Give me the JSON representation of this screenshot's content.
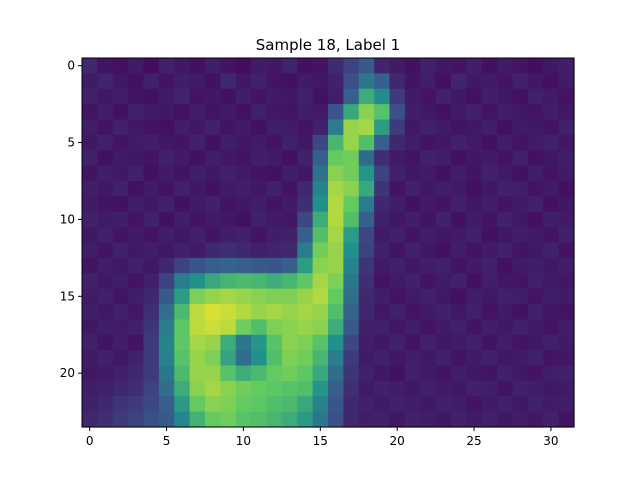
{
  "chart_data": {
    "type": "heatmap",
    "title": "Sample 18, Label 1",
    "xlabel": "",
    "ylabel": "",
    "colormap": "viridis",
    "value_range": [
      0,
      1
    ],
    "xlim": [
      -0.5,
      31.5
    ],
    "ylim": [
      23.5,
      -0.5
    ],
    "x_ticks": [
      0,
      5,
      10,
      15,
      20,
      25,
      30
    ],
    "y_ticks": [
      0,
      5,
      10,
      15,
      20
    ],
    "grid": false,
    "legend": "none",
    "rows": [
      [
        0.12,
        0.06,
        0.05,
        0.08,
        0.04,
        0.1,
        0.07,
        0.05,
        0.09,
        0.06,
        0.04,
        0.08,
        0.07,
        0.11,
        0.05,
        0.06,
        0.13,
        0.2,
        0.28,
        0.11,
        0.08,
        0.05,
        0.1,
        0.07,
        0.06,
        0.09,
        0.05,
        0.08,
        0.06,
        0.04,
        0.07,
        0.09
      ],
      [
        0.08,
        0.11,
        0.07,
        0.05,
        0.1,
        0.06,
        0.09,
        0.08,
        0.05,
        0.12,
        0.07,
        0.1,
        0.06,
        0.05,
        0.08,
        0.07,
        0.1,
        0.24,
        0.4,
        0.3,
        0.12,
        0.06,
        0.09,
        0.05,
        0.11,
        0.07,
        0.08,
        0.06,
        0.1,
        0.07,
        0.05,
        0.08
      ],
      [
        0.1,
        0.07,
        0.09,
        0.06,
        0.05,
        0.08,
        0.11,
        0.06,
        0.07,
        0.05,
        0.09,
        0.06,
        0.08,
        0.07,
        0.1,
        0.05,
        0.09,
        0.3,
        0.62,
        0.48,
        0.18,
        0.08,
        0.06,
        0.1,
        0.07,
        0.05,
        0.09,
        0.07,
        0.05,
        0.1,
        0.08,
        0.06
      ],
      [
        0.06,
        0.09,
        0.05,
        0.1,
        0.08,
        0.07,
        0.05,
        0.09,
        0.06,
        0.08,
        0.05,
        0.1,
        0.07,
        0.06,
        0.09,
        0.08,
        0.26,
        0.6,
        0.82,
        0.72,
        0.24,
        0.09,
        0.07,
        0.05,
        0.08,
        0.1,
        0.06,
        0.09,
        0.07,
        0.06,
        0.09,
        0.07
      ],
      [
        0.09,
        0.06,
        0.1,
        0.07,
        0.06,
        0.05,
        0.09,
        0.07,
        0.1,
        0.06,
        0.08,
        0.05,
        0.09,
        0.08,
        0.06,
        0.1,
        0.42,
        0.84,
        0.86,
        0.55,
        0.18,
        0.07,
        0.1,
        0.08,
        0.06,
        0.07,
        0.09,
        0.05,
        0.08,
        0.07,
        0.06,
        0.1
      ],
      [
        0.07,
        0.1,
        0.06,
        0.08,
        0.09,
        0.07,
        0.06,
        0.1,
        0.05,
        0.09,
        0.07,
        0.08,
        0.06,
        0.1,
        0.07,
        0.22,
        0.66,
        0.84,
        0.7,
        0.3,
        0.12,
        0.09,
        0.06,
        0.07,
        0.1,
        0.08,
        0.05,
        0.09,
        0.06,
        0.08,
        0.1,
        0.07
      ],
      [
        0.1,
        0.05,
        0.08,
        0.07,
        0.06,
        0.1,
        0.08,
        0.05,
        0.09,
        0.07,
        0.06,
        0.09,
        0.08,
        0.05,
        0.1,
        0.3,
        0.76,
        0.78,
        0.35,
        0.14,
        0.08,
        0.06,
        0.1,
        0.09,
        0.05,
        0.07,
        0.08,
        0.06,
        0.1,
        0.05,
        0.07,
        0.09
      ],
      [
        0.06,
        0.09,
        0.07,
        0.1,
        0.05,
        0.08,
        0.06,
        0.09,
        0.07,
        0.1,
        0.08,
        0.06,
        0.05,
        0.09,
        0.07,
        0.38,
        0.82,
        0.78,
        0.52,
        0.2,
        0.1,
        0.07,
        0.08,
        0.05,
        0.09,
        0.06,
        0.1,
        0.08,
        0.05,
        0.09,
        0.06,
        0.08
      ],
      [
        0.09,
        0.07,
        0.1,
        0.05,
        0.08,
        0.06,
        0.1,
        0.07,
        0.05,
        0.08,
        0.09,
        0.07,
        0.1,
        0.06,
        0.12,
        0.45,
        0.86,
        0.82,
        0.6,
        0.16,
        0.06,
        0.1,
        0.07,
        0.09,
        0.08,
        0.05,
        0.07,
        0.1,
        0.09,
        0.06,
        0.08,
        0.05
      ],
      [
        0.08,
        0.06,
        0.05,
        0.09,
        0.07,
        0.1,
        0.05,
        0.08,
        0.1,
        0.06,
        0.07,
        0.09,
        0.06,
        0.08,
        0.14,
        0.5,
        0.88,
        0.76,
        0.42,
        0.12,
        0.09,
        0.05,
        0.08,
        0.06,
        0.1,
        0.07,
        0.09,
        0.06,
        0.08,
        0.1,
        0.05,
        0.07
      ],
      [
        0.1,
        0.08,
        0.09,
        0.06,
        0.1,
        0.05,
        0.09,
        0.06,
        0.08,
        0.07,
        0.05,
        0.1,
        0.08,
        0.07,
        0.22,
        0.62,
        0.88,
        0.7,
        0.3,
        0.1,
        0.07,
        0.09,
        0.06,
        0.1,
        0.05,
        0.08,
        0.06,
        0.1,
        0.07,
        0.05,
        0.09,
        0.08
      ],
      [
        0.07,
        0.1,
        0.06,
        0.08,
        0.06,
        0.09,
        0.07,
        0.1,
        0.06,
        0.09,
        0.1,
        0.06,
        0.09,
        0.1,
        0.3,
        0.7,
        0.86,
        0.55,
        0.22,
        0.08,
        0.1,
        0.06,
        0.09,
        0.07,
        0.08,
        0.1,
        0.05,
        0.07,
        0.09,
        0.08,
        0.06,
        0.1
      ],
      [
        0.09,
        0.06,
        0.1,
        0.07,
        0.09,
        0.07,
        0.1,
        0.08,
        0.12,
        0.14,
        0.12,
        0.1,
        0.11,
        0.12,
        0.42,
        0.78,
        0.84,
        0.5,
        0.2,
        0.1,
        0.06,
        0.1,
        0.07,
        0.05,
        0.09,
        0.06,
        0.08,
        0.1,
        0.06,
        0.07,
        0.1,
        0.06
      ],
      [
        0.06,
        0.09,
        0.07,
        0.1,
        0.07,
        0.12,
        0.2,
        0.26,
        0.3,
        0.32,
        0.3,
        0.28,
        0.26,
        0.3,
        0.55,
        0.82,
        0.84,
        0.45,
        0.16,
        0.08,
        0.1,
        0.07,
        0.09,
        0.1,
        0.06,
        0.08,
        0.1,
        0.05,
        0.08,
        0.09,
        0.07,
        0.09
      ],
      [
        0.1,
        0.07,
        0.09,
        0.06,
        0.1,
        0.2,
        0.42,
        0.5,
        0.6,
        0.65,
        0.68,
        0.66,
        0.62,
        0.66,
        0.74,
        0.86,
        0.8,
        0.4,
        0.14,
        0.06,
        0.08,
        0.1,
        0.06,
        0.08,
        0.1,
        0.05,
        0.09,
        0.07,
        0.06,
        0.1,
        0.08,
        0.07
      ],
      [
        0.08,
        0.1,
        0.06,
        0.09,
        0.12,
        0.28,
        0.55,
        0.8,
        0.84,
        0.86,
        0.84,
        0.82,
        0.8,
        0.8,
        0.84,
        0.88,
        0.76,
        0.36,
        0.12,
        0.09,
        0.06,
        0.08,
        0.1,
        0.07,
        0.05,
        0.09,
        0.07,
        0.1,
        0.09,
        0.06,
        0.09,
        0.08
      ],
      [
        0.09,
        0.07,
        0.1,
        0.07,
        0.14,
        0.36,
        0.68,
        0.9,
        0.94,
        0.92,
        0.88,
        0.84,
        0.86,
        0.84,
        0.86,
        0.84,
        0.7,
        0.32,
        0.12,
        0.07,
        0.1,
        0.06,
        0.08,
        0.1,
        0.07,
        0.1,
        0.06,
        0.08,
        0.05,
        0.1,
        0.07,
        0.06
      ],
      [
        0.07,
        0.09,
        0.08,
        0.1,
        0.16,
        0.42,
        0.74,
        0.9,
        0.92,
        0.9,
        0.78,
        0.7,
        0.8,
        0.82,
        0.84,
        0.82,
        0.62,
        0.28,
        0.1,
        0.1,
        0.07,
        0.09,
        0.06,
        0.08,
        0.1,
        0.06,
        0.09,
        0.07,
        0.1,
        0.08,
        0.06,
        0.09
      ],
      [
        0.1,
        0.06,
        0.09,
        0.06,
        0.18,
        0.45,
        0.74,
        0.86,
        0.84,
        0.62,
        0.4,
        0.52,
        0.72,
        0.82,
        0.8,
        0.72,
        0.5,
        0.22,
        0.09,
        0.07,
        0.1,
        0.06,
        0.1,
        0.07,
        0.08,
        0.1,
        0.06,
        0.09,
        0.06,
        0.07,
        0.1,
        0.08
      ],
      [
        0.08,
        0.1,
        0.07,
        0.1,
        0.18,
        0.44,
        0.72,
        0.84,
        0.8,
        0.58,
        0.36,
        0.5,
        0.7,
        0.8,
        0.78,
        0.66,
        0.42,
        0.18,
        0.08,
        0.1,
        0.07,
        0.09,
        0.07,
        0.1,
        0.06,
        0.08,
        0.1,
        0.07,
        0.08,
        0.1,
        0.06,
        0.07
      ],
      [
        0.07,
        0.08,
        0.1,
        0.12,
        0.18,
        0.4,
        0.68,
        0.84,
        0.84,
        0.72,
        0.62,
        0.68,
        0.76,
        0.78,
        0.74,
        0.6,
        0.36,
        0.16,
        0.1,
        0.07,
        0.05,
        0.1,
        0.08,
        0.06,
        0.09,
        0.07,
        0.06,
        0.1,
        0.07,
        0.06,
        0.09,
        0.1
      ],
      [
        0.09,
        0.1,
        0.12,
        0.14,
        0.2,
        0.36,
        0.62,
        0.82,
        0.86,
        0.82,
        0.78,
        0.76,
        0.74,
        0.72,
        0.7,
        0.52,
        0.3,
        0.14,
        0.08,
        0.1,
        0.09,
        0.07,
        0.1,
        0.08,
        0.07,
        0.1,
        0.09,
        0.06,
        0.1,
        0.09,
        0.07,
        0.08
      ],
      [
        0.1,
        0.12,
        0.16,
        0.18,
        0.22,
        0.3,
        0.54,
        0.76,
        0.82,
        0.8,
        0.76,
        0.74,
        0.7,
        0.68,
        0.6,
        0.44,
        0.26,
        0.12,
        0.1,
        0.08,
        0.1,
        0.09,
        0.07,
        0.1,
        0.09,
        0.06,
        0.08,
        0.1,
        0.07,
        0.1,
        0.08,
        0.09
      ],
      [
        0.12,
        0.14,
        0.18,
        0.2,
        0.24,
        0.28,
        0.46,
        0.64,
        0.76,
        0.78,
        0.72,
        0.7,
        0.66,
        0.62,
        0.54,
        0.4,
        0.24,
        0.12,
        0.09,
        0.1,
        0.07,
        0.1,
        0.09,
        0.07,
        0.1,
        0.08,
        0.1,
        0.07,
        0.09,
        0.07,
        0.1,
        0.06
      ]
    ]
  }
}
